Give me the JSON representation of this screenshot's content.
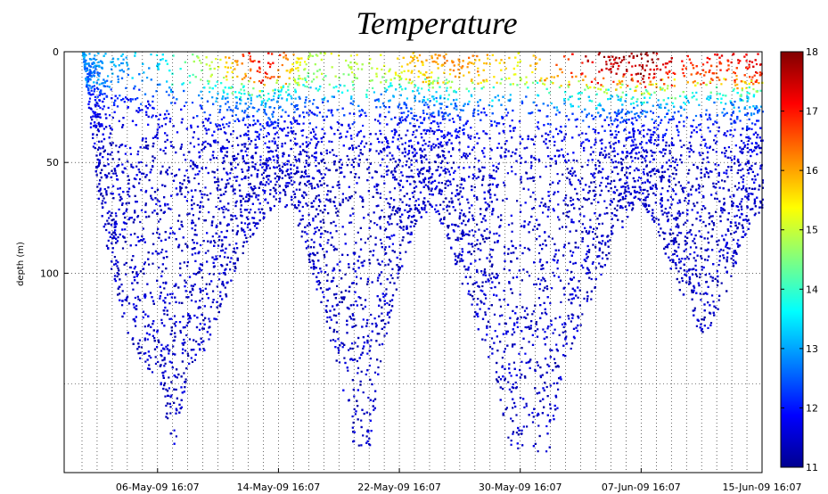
{
  "chart_data": {
    "type": "scatter",
    "title": "Temperature",
    "xlabel": "",
    "ylabel": "depth (m)",
    "x_tick_labels": [
      "06-May-09 16:07",
      "14-May-09 16:07",
      "22-May-09 16:07",
      "30-May-09 16:07",
      "07-Jun-09 16:07",
      "15-Jun-09 16:07"
    ],
    "y_tick_labels": [
      "0",
      "50",
      "100"
    ],
    "y_ticks": [
      0,
      50,
      100
    ],
    "ylim": [
      0,
      190
    ],
    "y_reversed": true,
    "x_range_days": [
      "01-May-09",
      "15-Jun-09"
    ],
    "grid": "dotted",
    "colorbar": {
      "ticks": [
        11,
        12,
        13,
        14,
        15,
        16,
        17,
        18
      ],
      "tick_labels": [
        "11",
        "12",
        "13",
        "14",
        "15",
        "16",
        "17",
        "18"
      ],
      "range": [
        11,
        18
      ],
      "colormap": "jet"
    },
    "dive_envelope": [
      {
        "date": "01-May-09",
        "max_depth": 0
      },
      {
        "date": "02-May-09",
        "max_depth": 65
      },
      {
        "date": "03-May-09",
        "max_depth": 105
      },
      {
        "date": "04-May-09",
        "max_depth": 130
      },
      {
        "date": "05-May-09",
        "max_depth": 142
      },
      {
        "date": "06-May-09",
        "max_depth": 150
      },
      {
        "date": "07-May-09",
        "max_depth": 180
      },
      {
        "date": "08-May-09",
        "max_depth": 145
      },
      {
        "date": "09-May-09",
        "max_depth": 135
      },
      {
        "date": "10-May-09",
        "max_depth": 120
      },
      {
        "date": "11-May-09",
        "max_depth": 100
      },
      {
        "date": "12-May-09",
        "max_depth": 85
      },
      {
        "date": "13-May-09",
        "max_depth": 75
      },
      {
        "date": "14-May-09",
        "max_depth": 68
      },
      {
        "date": "15-May-09",
        "max_depth": 72
      },
      {
        "date": "16-May-09",
        "max_depth": 95
      },
      {
        "date": "17-May-09",
        "max_depth": 120
      },
      {
        "date": "18-May-09",
        "max_depth": 145
      },
      {
        "date": "19-May-09",
        "max_depth": 180
      },
      {
        "date": "20-May-09",
        "max_depth": 180
      },
      {
        "date": "21-May-09",
        "max_depth": 130
      },
      {
        "date": "22-May-09",
        "max_depth": 100
      },
      {
        "date": "23-May-09",
        "max_depth": 78
      },
      {
        "date": "24-May-09",
        "max_depth": 70
      },
      {
        "date": "25-May-09",
        "max_depth": 80
      },
      {
        "date": "26-May-09",
        "max_depth": 105
      },
      {
        "date": "27-May-09",
        "max_depth": 125
      },
      {
        "date": "28-May-09",
        "max_depth": 140
      },
      {
        "date": "29-May-09",
        "max_depth": 180
      },
      {
        "date": "30-May-09",
        "max_depth": 180
      },
      {
        "date": "31-May-09",
        "max_depth": 180
      },
      {
        "date": "01-Jun-09",
        "max_depth": 180
      },
      {
        "date": "02-Jun-09",
        "max_depth": 140
      },
      {
        "date": "03-Jun-09",
        "max_depth": 122
      },
      {
        "date": "04-Jun-09",
        "max_depth": 105
      },
      {
        "date": "05-Jun-09",
        "max_depth": 90
      },
      {
        "date": "06-Jun-09",
        "max_depth": 75
      },
      {
        "date": "07-Jun-09",
        "max_depth": 68
      },
      {
        "date": "08-Jun-09",
        "max_depth": 80
      },
      {
        "date": "09-Jun-09",
        "max_depth": 100
      },
      {
        "date": "10-Jun-09",
        "max_depth": 118
      },
      {
        "date": "11-Jun-09",
        "max_depth": 128
      },
      {
        "date": "12-Jun-09",
        "max_depth": 120
      },
      {
        "date": "13-Jun-09",
        "max_depth": 100
      },
      {
        "date": "14-Jun-09",
        "max_depth": 80
      },
      {
        "date": "15-Jun-09",
        "max_depth": 70
      }
    ],
    "surface_temperature": [
      {
        "date": "01-May-09",
        "temp": 13.0
      },
      {
        "date": "06-May-09",
        "temp": 13.5
      },
      {
        "date": "10-May-09",
        "temp": 15.5
      },
      {
        "date": "13-May-09",
        "temp": 17.5
      },
      {
        "date": "16-May-09",
        "temp": 15.0
      },
      {
        "date": "21-May-09",
        "temp": 15.5
      },
      {
        "date": "26-May-09",
        "temp": 16.5
      },
      {
        "date": "30-May-09",
        "temp": 15.5
      },
      {
        "date": "03-Jun-09",
        "temp": 17.5
      },
      {
        "date": "07-Jun-09",
        "temp": 18.0
      },
      {
        "date": "11-Jun-09",
        "temp": 17.0
      },
      {
        "date": "15-Jun-09",
        "temp": 17.5
      }
    ]
  }
}
